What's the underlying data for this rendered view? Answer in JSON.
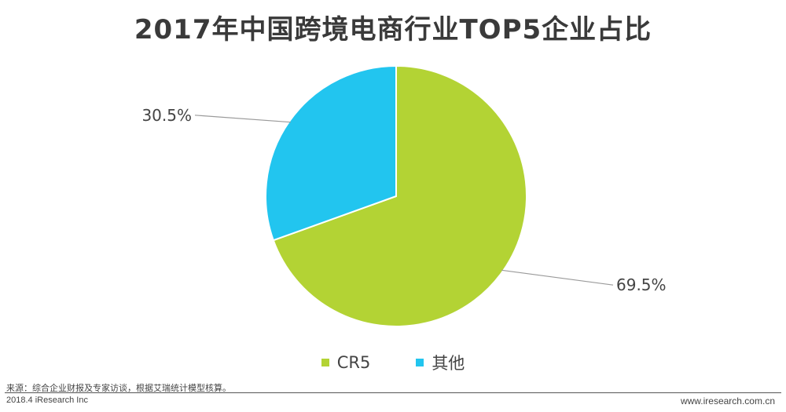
{
  "title": "2017年中国跨境电商行业TOP5企业占比",
  "chart_data": {
    "type": "pie",
    "categories": [
      "CR5",
      "其他"
    ],
    "values": [
      69.5,
      30.5
    ],
    "labels": [
      "69.5%",
      "30.5%"
    ],
    "colors": [
      "#b3d334",
      "#22c5ef"
    ],
    "start_angle": "12 o'clock",
    "direction": "clockwise",
    "legend_placement": "bottom"
  },
  "legend": [
    {
      "label": "CR5",
      "color": "#b3d334"
    },
    {
      "label": "其他",
      "color": "#22c5ef"
    }
  ],
  "footer": {
    "source": "来源：综合企业财报及专家访谈，根据艾瑞统计模型核算。",
    "copyright": "2018.4 iResearch Inc",
    "website": "www.iresearch.com.cn"
  }
}
